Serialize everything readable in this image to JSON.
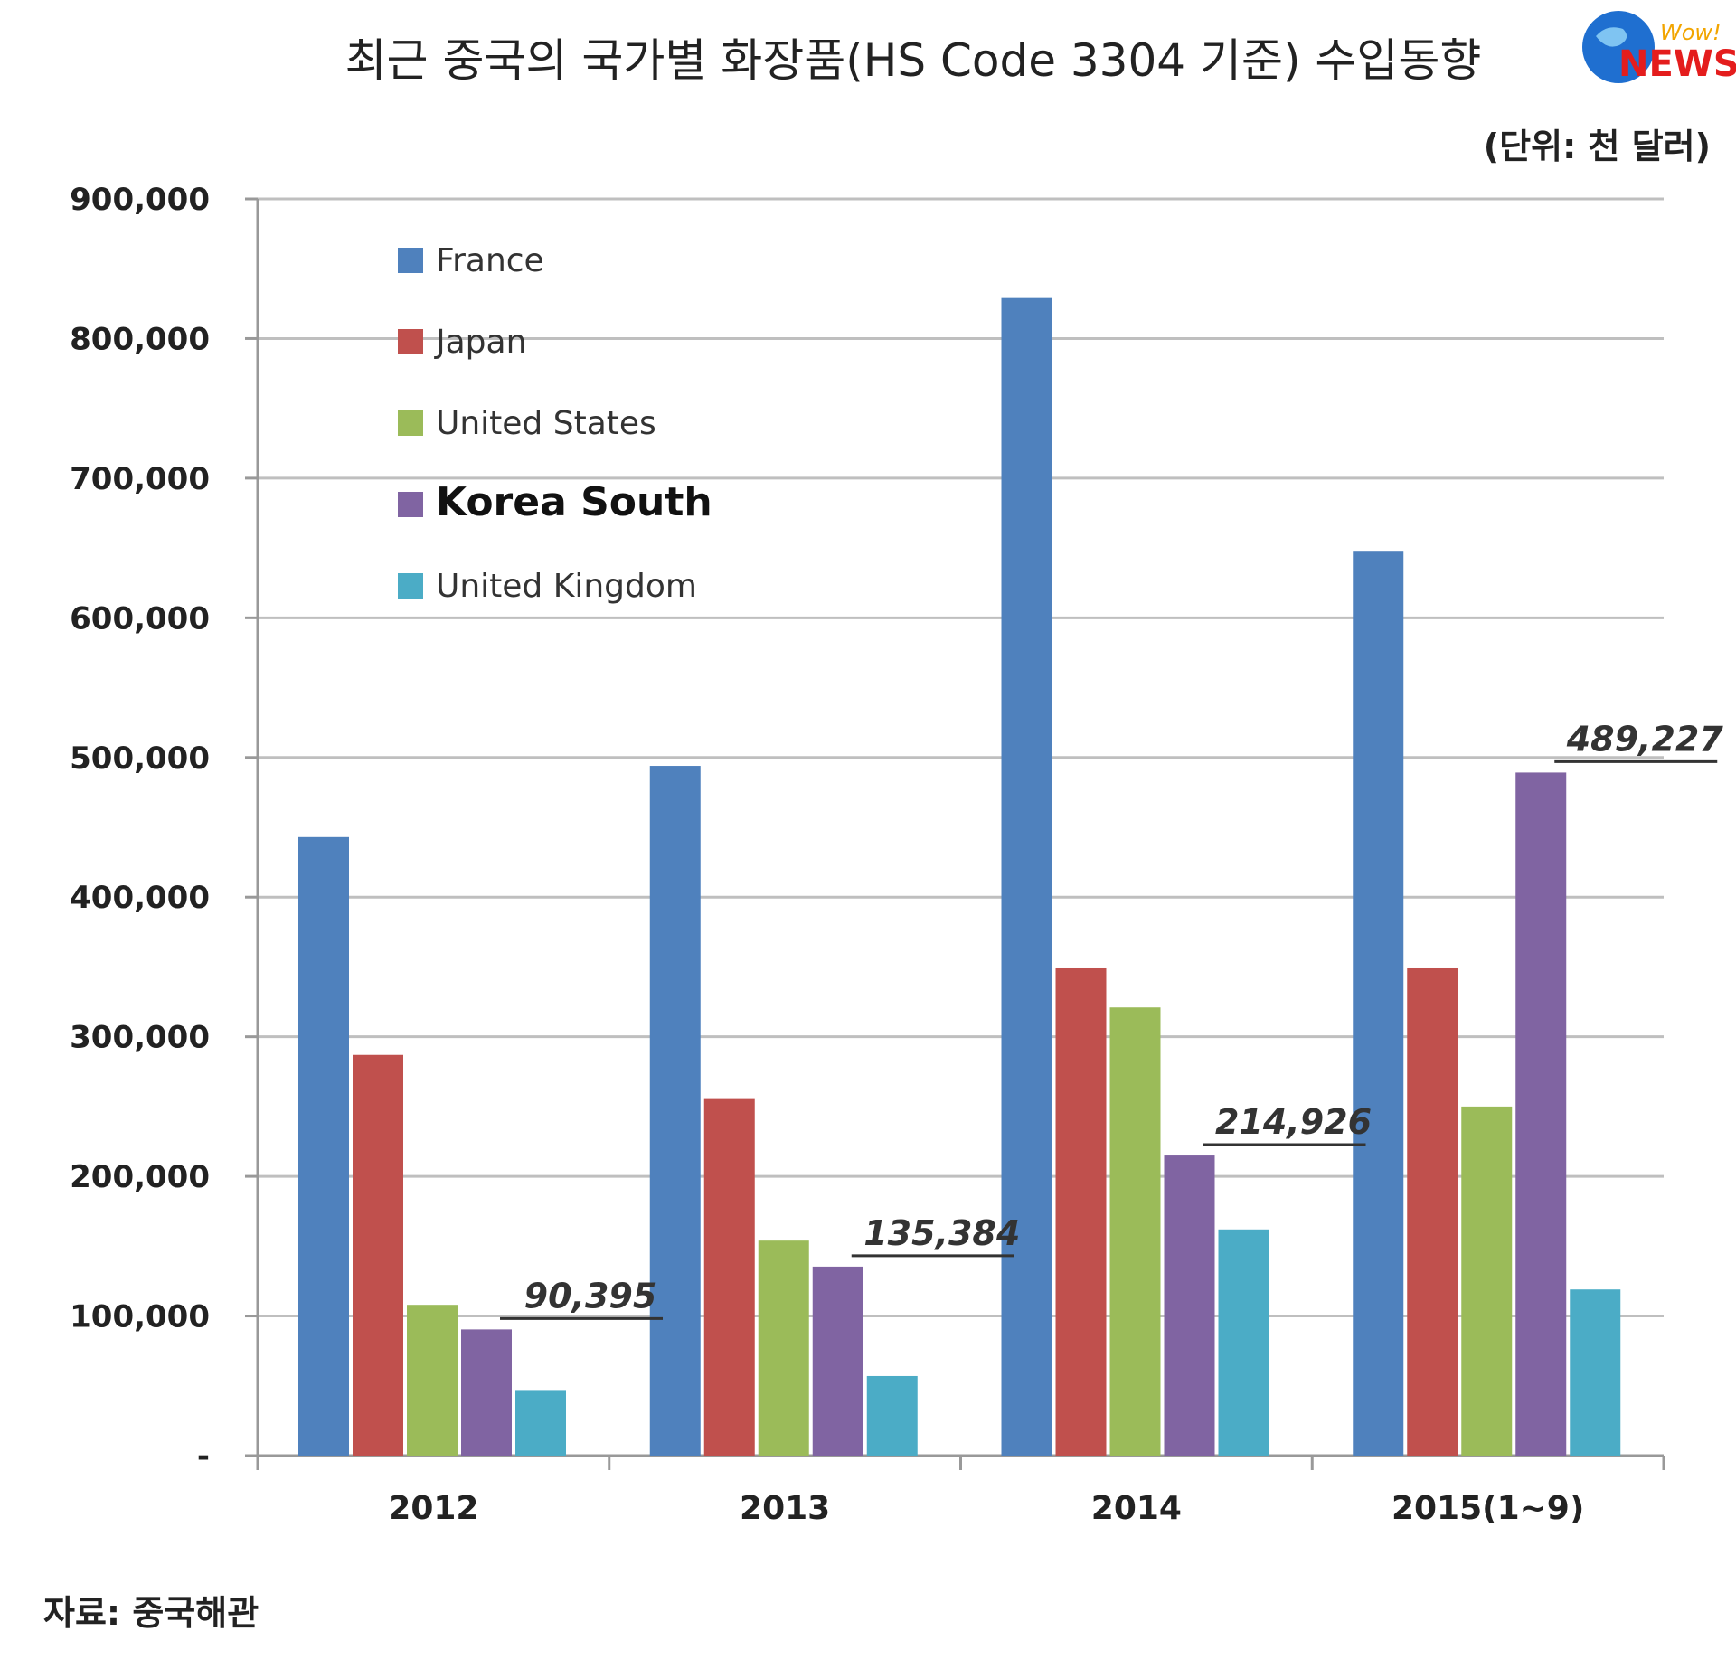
{
  "header": {
    "title": "최근 중국의 국가별 화장품(HS Code 3304 기준) 수입동향",
    "unit": "(단위: 천 달러)"
  },
  "logo": {
    "top_text": "Wow!",
    "bottom_text": "NEWS",
    "icon": "globe-icon",
    "colors": {
      "globe": "#1f6fd0",
      "wow": "#f2a500",
      "news": "#e41d1d"
    }
  },
  "source": "자료: 중국해관",
  "chart_data": {
    "type": "bar",
    "title": "최근 중국의 국가별 화장품(HS Code 3304 기준) 수입동향",
    "ylabel": "(단위: 천 달러)",
    "xlabel": "",
    "categories": [
      "2012",
      "2013",
      "2014",
      "2015(1~9)"
    ],
    "ylim": [
      0,
      900000
    ],
    "yticks": [
      {
        "value": 0,
        "label": "-"
      },
      {
        "value": 100000,
        "label": "100,000"
      },
      {
        "value": 200000,
        "label": "200,000"
      },
      {
        "value": 300000,
        "label": "300,000"
      },
      {
        "value": 400000,
        "label": "400,000"
      },
      {
        "value": 500000,
        "label": "500,000"
      },
      {
        "value": 600000,
        "label": "600,000"
      },
      {
        "value": 700000,
        "label": "700,000"
      },
      {
        "value": 800000,
        "label": "800,000"
      },
      {
        "value": 900000,
        "label": "900,000"
      }
    ],
    "grid": true,
    "legend_position": "top-left",
    "series": [
      {
        "name": "France",
        "color": "#4f81bd",
        "values": [
          443000,
          494000,
          829000,
          648000
        ]
      },
      {
        "name": "Japan",
        "color": "#c0504d",
        "values": [
          287000,
          256000,
          349000,
          349000
        ]
      },
      {
        "name": "United States",
        "color": "#9bbb59",
        "values": [
          108000,
          154000,
          321000,
          250000
        ]
      },
      {
        "name": "Korea South",
        "color": "#8064a2",
        "emphasis": true,
        "values": [
          90395,
          135384,
          214926,
          489227
        ]
      },
      {
        "name": "United Kingdom",
        "color": "#4bacc6",
        "values": [
          47000,
          57000,
          162000,
          119000
        ]
      }
    ],
    "annotations": [
      {
        "series": "Korea South",
        "category": "2012",
        "text": "90,395"
      },
      {
        "series": "Korea South",
        "category": "2013",
        "text": "135,384"
      },
      {
        "series": "Korea South",
        "category": "2014",
        "text": "214,926"
      },
      {
        "series": "Korea South",
        "category": "2015(1~9)",
        "text": "489,227"
      }
    ]
  }
}
